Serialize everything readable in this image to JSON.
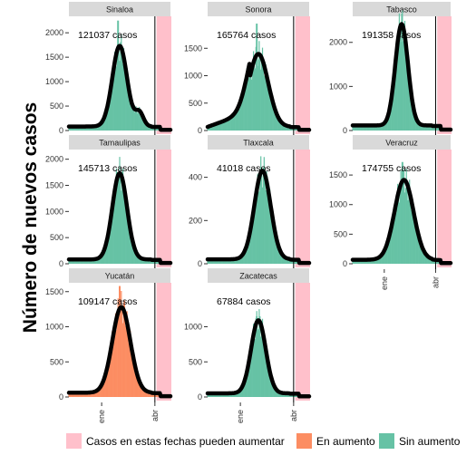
{
  "chart_data": {
    "type": "bar",
    "ylabel": "Número de nuevos casos",
    "x_ticks": [
      "ene",
      "abr"
    ],
    "colors": {
      "pending": "#ffc0cb",
      "rising": "#fc8d62",
      "not_rising": "#66c2a5",
      "trend": "#000000",
      "strip": "#d9d9d9"
    },
    "legend": {
      "placement": "bottom",
      "items": [
        {
          "key": "pending",
          "label": "Casos en estas fechas pueden aumentar"
        },
        {
          "key": "rising",
          "label": "En aumento"
        },
        {
          "key": "not_rising",
          "label": "Sin aumento"
        }
      ]
    },
    "panels": [
      {
        "name": "Sinaloa",
        "total_label": "121037 casos",
        "status": "not_rising",
        "ylim": [
          0,
          2300
        ],
        "yticks": [
          0,
          500,
          1000,
          1500,
          2000
        ],
        "peak_day": 62,
        "peak": 1650,
        "width": 9,
        "spike": 2250,
        "bump": {
          "day": 86,
          "value": 280,
          "width": 5
        }
      },
      {
        "name": "Sonora",
        "total_label": "165764 casos",
        "status": "not_rising",
        "ylim": [
          0,
          2050
        ],
        "yticks": [
          0,
          500,
          1000,
          1500
        ],
        "peak_day": 62,
        "peak": 1330,
        "width": 12,
        "spike": 1950,
        "early": 280
      },
      {
        "name": "Tabasco",
        "total_label": "191358 casos",
        "status": "not_rising",
        "ylim": [
          0,
          2550
        ],
        "yticks": [
          0,
          1000,
          2000
        ],
        "peak_day": 62,
        "peak": 2300,
        "width": 8,
        "spike": 2450
      },
      {
        "name": "Tamaulipas",
        "total_label": "145713 casos",
        "status": "not_rising",
        "ylim": [
          0,
          2150
        ],
        "yticks": [
          0,
          500,
          1000,
          1500,
          2000
        ],
        "peak_day": 62,
        "peak": 1650,
        "width": 9,
        "spike": 1750
      },
      {
        "name": "Tlaxcala",
        "total_label": "41018 casos",
        "status": "not_rising",
        "ylim": [
          0,
          520
        ],
        "yticks": [
          0,
          200,
          400
        ],
        "peak_day": 67,
        "peak": 410,
        "width": 10,
        "spike": 440
      },
      {
        "name": "Veracruz",
        "total_label": "174755 casos",
        "status": "not_rising",
        "ylim": [
          0,
          1900
        ],
        "yticks": [
          0,
          500,
          1000,
          1500
        ],
        "peak_day": 65,
        "peak": 1350,
        "width": 12,
        "spike": 1720
      },
      {
        "name": "Yucatán",
        "total_label": "109147 casos",
        "status": "rising",
        "ylim": [
          0,
          1600
        ],
        "yticks": [
          0,
          500,
          1000,
          1500
        ],
        "peak_day": 64,
        "peak": 1220,
        "width": 11,
        "spike": 1580
      },
      {
        "name": "Zacatecas",
        "total_label": "67884 casos",
        "status": "not_rising",
        "ylim": [
          0,
          1600
        ],
        "yticks": [
          0,
          500,
          1000
        ],
        "peak_day": 62,
        "peak": 1040,
        "width": 9,
        "spike": 1150
      }
    ]
  }
}
